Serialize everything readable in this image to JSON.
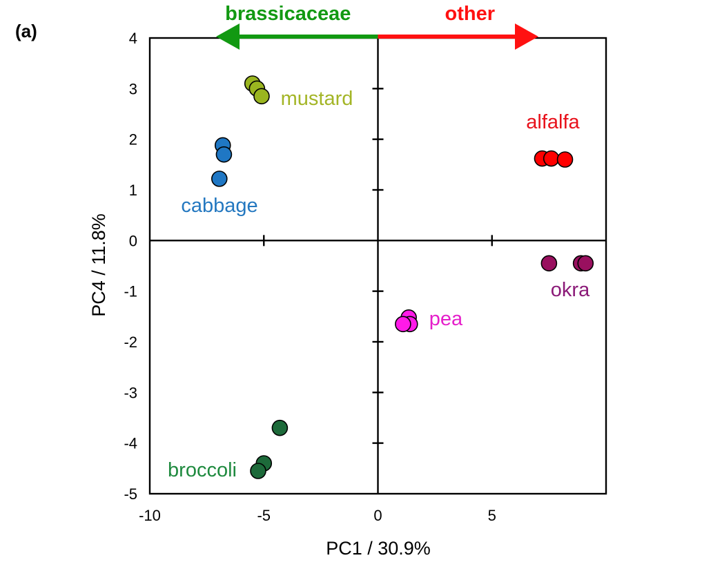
{
  "chart_data": {
    "type": "scatter",
    "panel_label": "(a)",
    "xlabel": "PC1 / 30.9%",
    "ylabel": "PC4 / 11.8%",
    "xlim": [
      -10,
      10
    ],
    "ylim": [
      -5,
      4
    ],
    "xticks": [
      -10,
      -5,
      0,
      5
    ],
    "yticks": [
      4,
      3,
      2,
      1,
      0,
      -1,
      -2,
      -3,
      -4,
      -5
    ],
    "grid": false,
    "arrows": [
      {
        "label": "brassicaceae",
        "direction": "left",
        "color": "#129912"
      },
      {
        "label": "other",
        "direction": "right",
        "color": "#ff1111"
      }
    ],
    "series": [
      {
        "name": "mustard",
        "color": "#9ab520",
        "label_color": "#a3b526",
        "points": [
          [
            -5.5,
            3.1
          ],
          [
            -5.3,
            3.0
          ],
          [
            -5.1,
            2.85
          ]
        ]
      },
      {
        "name": "cabbage",
        "color": "#1f77c4",
        "label_color": "#2478c0",
        "points": [
          [
            -6.8,
            1.88
          ],
          [
            -6.75,
            1.7
          ],
          [
            -6.95,
            1.22
          ]
        ]
      },
      {
        "name": "alfalfa",
        "color": "#ff0000",
        "label_color": "#e8111b",
        "points": [
          [
            7.2,
            1.62
          ],
          [
            7.6,
            1.62
          ],
          [
            8.2,
            1.6
          ]
        ]
      },
      {
        "name": "okra",
        "color": "#99105f",
        "label_color": "#8b1a78",
        "points": [
          [
            7.5,
            -0.45
          ],
          [
            8.9,
            -0.45
          ],
          [
            9.1,
            -0.45
          ]
        ]
      },
      {
        "name": "pea",
        "color": "#ff1ae8",
        "label_color": "#e51fca",
        "points": [
          [
            1.35,
            -1.52
          ],
          [
            1.4,
            -1.65
          ],
          [
            1.1,
            -1.65
          ]
        ]
      },
      {
        "name": "broccoli",
        "color": "#1d6a3a",
        "label_color": "#1f8a3f",
        "points": [
          [
            -4.3,
            -3.7
          ],
          [
            -5.0,
            -4.4
          ],
          [
            -5.25,
            -4.55
          ]
        ]
      }
    ]
  }
}
